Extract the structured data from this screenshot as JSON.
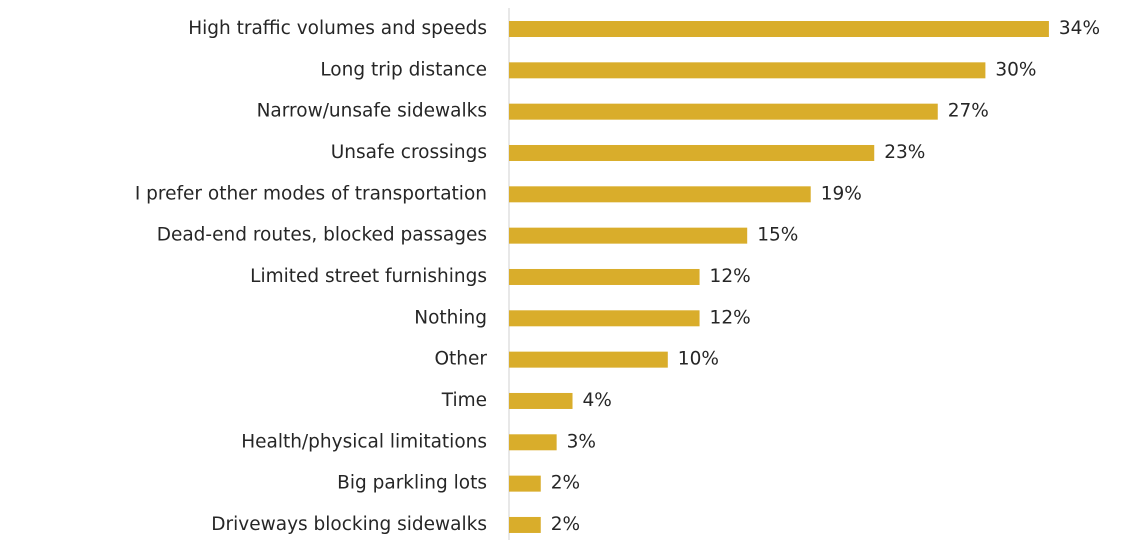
{
  "chart_data": {
    "type": "bar",
    "orientation": "horizontal",
    "categories": [
      "High traffic volumes and speeds",
      "Long trip distance",
      "Narrow/unsafe sidewalks",
      "Unsafe crossings",
      "I prefer other modes of transportation",
      "Dead-end routes, blocked passages",
      "Limited street furnishings",
      "Nothing",
      "Other",
      "Time",
      "Health/physical limitations",
      "Big parkling lots",
      "Driveways blocking sidewalks"
    ],
    "values": [
      34,
      30,
      27,
      23,
      19,
      15,
      12,
      12,
      10,
      4,
      3,
      2,
      2
    ],
    "value_labels": [
      "34%",
      "30%",
      "27%",
      "23%",
      "19%",
      "15%",
      "12%",
      "12%",
      "10%",
      "4%",
      "3%",
      "2%",
      "2%"
    ],
    "color": "#d9ad2b"
  }
}
